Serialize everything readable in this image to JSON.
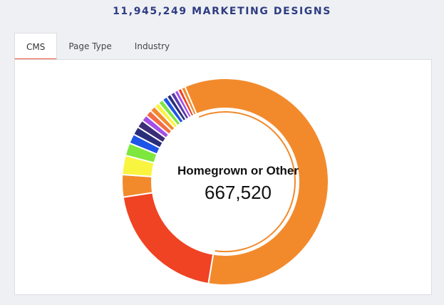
{
  "header": {
    "title": "11,945,249 MARKETING DESIGNS"
  },
  "tabs": [
    {
      "label": "CMS",
      "active": true
    },
    {
      "label": "Page Type",
      "active": false
    },
    {
      "label": "Industry",
      "active": false
    }
  ],
  "chart_data": {
    "type": "pie",
    "donut": true,
    "total": 11945249,
    "highlighted": {
      "label": "Homegrown or Other",
      "value": "667,520"
    },
    "slices": [
      {
        "color": "#f28a2c",
        "share": 0.59
      },
      {
        "color": "#ef4323",
        "share": 0.2
      },
      {
        "color": "#f28a2c",
        "share": 0.035
      },
      {
        "color": "#f9f43f",
        "share": 0.03
      },
      {
        "color": "#7ee73d",
        "share": 0.02
      },
      {
        "color": "#1e55e8",
        "share": 0.015
      },
      {
        "color": "#2a2e7a",
        "share": 0.013
      },
      {
        "color": "#3b2d76",
        "share": 0.012
      },
      {
        "color": "#a44fe8",
        "share": 0.01
      },
      {
        "color": "#f26d45",
        "share": 0.01
      },
      {
        "color": "#f28a2c",
        "share": 0.009
      },
      {
        "color": "#f9f43f",
        "share": 0.008
      },
      {
        "color": "#7ee73d",
        "share": 0.008
      },
      {
        "color": "#1e55e8",
        "share": 0.008
      },
      {
        "color": "#2a2e7a",
        "share": 0.007
      },
      {
        "color": "#5a3bb0",
        "share": 0.007
      },
      {
        "color": "#a44fe8",
        "share": 0.006
      },
      {
        "color": "#ef4323",
        "share": 0.006
      },
      {
        "color": "#f28a2c",
        "share": 0.006
      }
    ]
  }
}
